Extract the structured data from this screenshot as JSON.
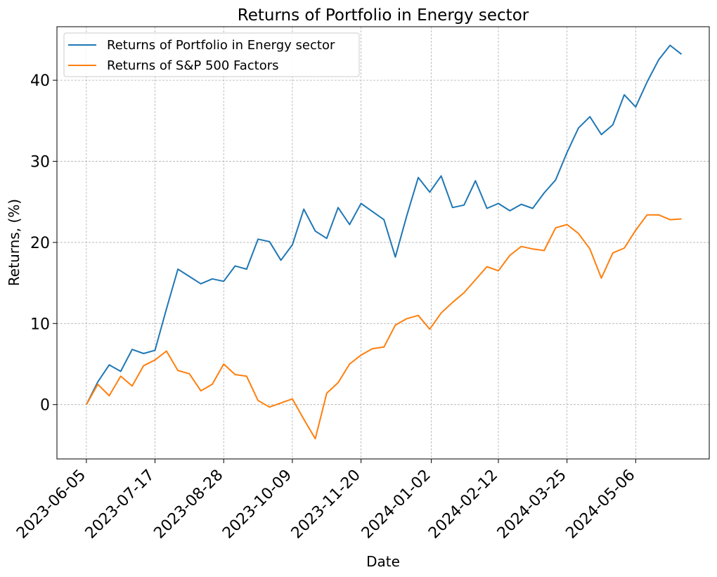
{
  "chart_data": {
    "type": "line",
    "title": "Returns of Portfolio in Energy sector",
    "xlabel": "Date",
    "ylabel": "Returns, (%)",
    "x_tick_labels": [
      "2023-06-05",
      "2023-07-17",
      "2023-08-28",
      "2023-10-09",
      "2023-11-20",
      "2024-01-02",
      "2024-02-12",
      "2024-03-25",
      "2024-05-06"
    ],
    "y_ticks": [
      0,
      10,
      20,
      30,
      40
    ],
    "ylim": [
      -6.7,
      46.6
    ],
    "xlim": [
      "2023-05-18",
      "2024-06-20"
    ],
    "grid": true,
    "legend_position": "top-left",
    "x": [
      "2023-06-05",
      "2023-06-12",
      "2023-06-19",
      "2023-06-26",
      "2023-07-03",
      "2023-07-10",
      "2023-07-17",
      "2023-07-24",
      "2023-07-31",
      "2023-08-07",
      "2023-08-14",
      "2023-08-21",
      "2023-08-28",
      "2023-09-04",
      "2023-09-11",
      "2023-09-18",
      "2023-09-25",
      "2023-10-02",
      "2023-10-09",
      "2023-10-16",
      "2023-10-23",
      "2023-10-30",
      "2023-11-06",
      "2023-11-13",
      "2023-11-20",
      "2023-11-27",
      "2023-12-04",
      "2023-12-11",
      "2023-12-18",
      "2023-12-25",
      "2024-01-01",
      "2024-01-08",
      "2024-01-15",
      "2024-01-22",
      "2024-01-29",
      "2024-02-05",
      "2024-02-12",
      "2024-02-19",
      "2024-02-26",
      "2024-03-04",
      "2024-03-11",
      "2024-03-18",
      "2024-03-25",
      "2024-04-01",
      "2024-04-08",
      "2024-04-15",
      "2024-04-22",
      "2024-04-29",
      "2024-05-06",
      "2024-05-13",
      "2024-05-20",
      "2024-05-27",
      "2024-06-03"
    ],
    "series": [
      {
        "name": "Returns of Portfolio in Energy sector",
        "color": "#1f77b4",
        "values": [
          0,
          2.8,
          4.9,
          4.1,
          6.8,
          6.3,
          6.7,
          11.8,
          16.7,
          15.8,
          14.9,
          15.5,
          15.2,
          17.1,
          16.7,
          20.4,
          20.1,
          17.8,
          19.7,
          24.1,
          21.4,
          20.5,
          24.3,
          22.2,
          24.8,
          23.8,
          22.8,
          18.2,
          23.3,
          28.0,
          26.2,
          28.2,
          24.3,
          24.6,
          27.6,
          24.2,
          24.8,
          23.9,
          24.7,
          24.2,
          26.1,
          27.7,
          31.1,
          34.1,
          35.5,
          33.3,
          34.5,
          38.2,
          36.7,
          39.8,
          42.5,
          44.3,
          43.2
        ]
      },
      {
        "name": "Returns of S&P 500 Factors",
        "color": "#ff7f0e",
        "values": [
          0,
          2.5,
          1.1,
          3.5,
          2.3,
          4.8,
          5.5,
          6.6,
          4.2,
          3.8,
          1.7,
          2.5,
          5.0,
          3.7,
          3.5,
          0.5,
          -0.3,
          0.2,
          0.7,
          -1.8,
          -4.2,
          1.4,
          2.7,
          5.0,
          6.1,
          6.9,
          7.1,
          9.8,
          10.6,
          11.0,
          9.3,
          11.3,
          12.6,
          13.8,
          15.4,
          17.0,
          16.5,
          18.4,
          19.5,
          19.2,
          19.0,
          21.8,
          22.2,
          21.1,
          19.2,
          15.6,
          18.7,
          19.3,
          21.5,
          23.4,
          23.4,
          22.8,
          22.9
        ]
      }
    ]
  }
}
